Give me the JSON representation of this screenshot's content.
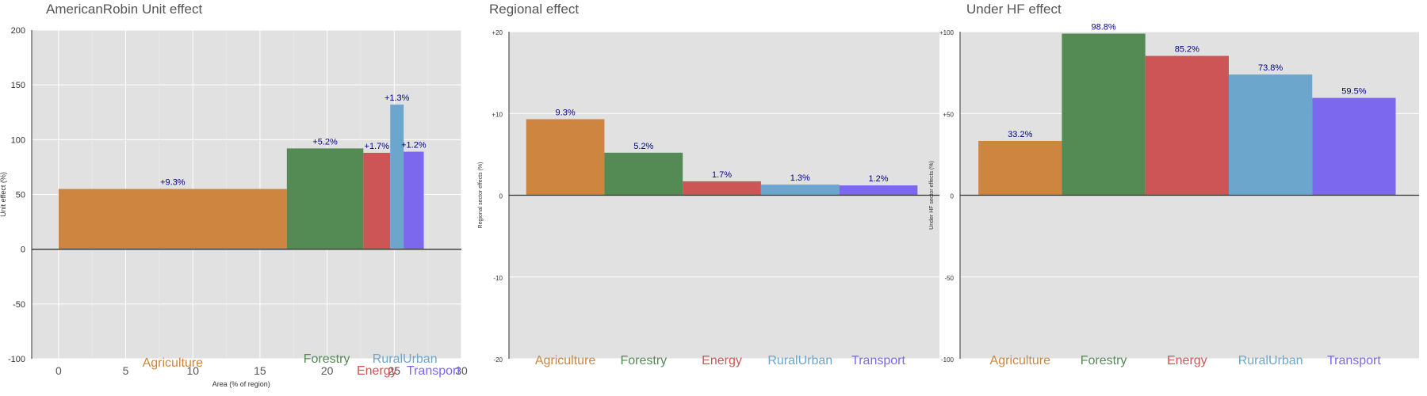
{
  "chart_data": [
    {
      "type": "bar",
      "title": "AmericanRobin Unit effect",
      "xlabel": "Area (% of region)",
      "ylabel": "Unit effect (%)",
      "xlim": [
        -2,
        30
      ],
      "ylim": [
        -100,
        200
      ],
      "xticks": [
        0,
        5,
        10,
        15,
        20,
        25,
        30
      ],
      "yticks": [
        -100,
        -50,
        0,
        50,
        100,
        150,
        200
      ],
      "grid": true,
      "variable_width": true,
      "categories": [
        "Agriculture",
        "Forestry",
        "Energy",
        "RuralUrban",
        "Transport"
      ],
      "x_start": [
        0,
        17,
        22.7,
        24.7,
        25.7
      ],
      "x_end": [
        17,
        22.7,
        24.7,
        25.7,
        27.2
      ],
      "values": [
        55,
        92,
        88,
        132,
        89
      ],
      "labels": [
        "+9.3%",
        "+5.2%",
        "+1.7%",
        "+1.3%",
        "+1.2%"
      ],
      "colors": [
        "#CD853F",
        "#548B54",
        "#CD5555",
        "#6CA6CD",
        "#7B68EE"
      ]
    },
    {
      "type": "bar",
      "title": "Regional effect",
      "ylabel": "Regional sector effects (%)",
      "ylim": [
        -20,
        20
      ],
      "yticks": [
        -20,
        -10,
        0,
        10,
        20
      ],
      "ytick_labels": [
        "-20",
        "-10",
        "0",
        "+10",
        "+20"
      ],
      "grid": true,
      "categories": [
        "Agriculture",
        "Forestry",
        "Energy",
        "RuralUrban",
        "Transport"
      ],
      "values": [
        9.3,
        5.2,
        1.7,
        1.3,
        1.2
      ],
      "labels": [
        "9.3%",
        "5.2%",
        "1.7%",
        "1.3%",
        "1.2%"
      ],
      "colors": [
        "#CD853F",
        "#548B54",
        "#CD5555",
        "#6CA6CD",
        "#7B68EE"
      ]
    },
    {
      "type": "bar",
      "title": "Under HF effect",
      "ylabel": "Under HF sector effects (%)",
      "ylim": [
        -100,
        100
      ],
      "yticks": [
        -100,
        -50,
        0,
        50,
        100
      ],
      "ytick_labels": [
        "-100",
        "-50",
        "0",
        "+50",
        "+100"
      ],
      "grid": true,
      "categories": [
        "Agriculture",
        "Forestry",
        "Energy",
        "RuralUrban",
        "Transport"
      ],
      "values": [
        33.2,
        98.8,
        85.2,
        73.8,
        59.5
      ],
      "labels": [
        "33.2%",
        "98.8%",
        "85.2%",
        "73.8%",
        "59.5%"
      ],
      "colors": [
        "#CD853F",
        "#548B54",
        "#CD5555",
        "#6CA6CD",
        "#7B68EE"
      ]
    }
  ]
}
